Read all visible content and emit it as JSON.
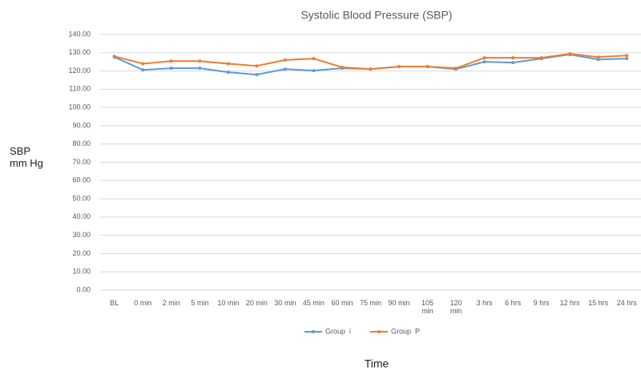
{
  "chart_data": {
    "type": "line",
    "title": "Systolic Blood Pressure (SBP)",
    "x_label": "Time",
    "y_label": "SBP mm Hg",
    "categories": [
      "BL",
      "0 min",
      "2 min",
      "5 min",
      "10 min",
      "20 min",
      "30 min",
      "45 min",
      "60 min",
      "75 min",
      "90 min",
      "105 min",
      "120 min",
      "3 hrs",
      "6 hrs",
      "9 hrs",
      "12 hrs",
      "15 hrs",
      "24 hrs"
    ],
    "series": [
      {
        "name": "Group  i",
        "color": "#5b9bd5",
        "values": [
          127.6,
          120.6,
          121.5,
          121.5,
          119.3,
          118,
          121,
          120.2,
          121.5,
          121,
          122.4,
          122.4,
          121,
          125,
          124.6,
          126.8,
          129,
          126.3,
          126.8
        ]
      },
      {
        "name": "Group  P",
        "color": "#ed7d31",
        "values": [
          128,
          124,
          125.4,
          125.4,
          124,
          122.8,
          126,
          126.8,
          122,
          121,
          122.4,
          122.4,
          121.5,
          127.2,
          127.2,
          127.2,
          129.4,
          127.6,
          128.5
        ]
      }
    ],
    "ylim": [
      0,
      140
    ],
    "yticks": [
      {
        "value": 0,
        "label": "0.00"
      },
      {
        "value": 10,
        "label": "10.00"
      },
      {
        "value": 20,
        "label": "20.00"
      },
      {
        "value": 30,
        "label": "30.00"
      },
      {
        "value": 40,
        "label": "40.00"
      },
      {
        "value": 50,
        "label": "50.00"
      },
      {
        "value": 60,
        "label": "60.00"
      },
      {
        "value": 70,
        "label": "70.00"
      },
      {
        "value": 80,
        "label": "80.00"
      },
      {
        "value": 90,
        "label": "90.00"
      },
      {
        "value": 100,
        "label": "100.00"
      },
      {
        "value": 110,
        "label": "110.00"
      },
      {
        "value": 120,
        "label": "120.00"
      },
      {
        "value": 130,
        "label": "130.00"
      },
      {
        "value": 140,
        "label": "140.00"
      }
    ],
    "grid": true,
    "legend": "bottom"
  }
}
